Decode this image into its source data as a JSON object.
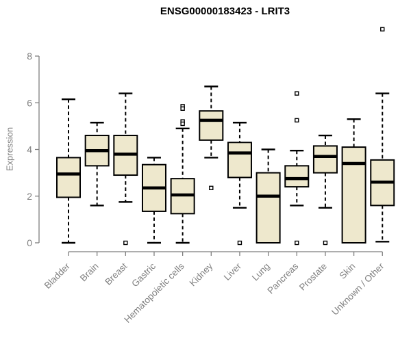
{
  "title": "ENSG00000183423 - LRIT3",
  "colors": {
    "box_fill": "#EEE8CD",
    "box_border": "#000000",
    "median": "#000000",
    "whisker": "#000000",
    "outlier_border": "#000000",
    "outlier_fill": "#ffffff",
    "axis": "#7E7E7E",
    "tick_label": "#808080",
    "title": "#000000"
  },
  "chart_data": {
    "type": "boxplot",
    "title": "ENSG00000183423 - LRIT3",
    "xlabel": "",
    "ylabel": "Expression",
    "ylim": [
      0,
      8
    ],
    "yticks": [
      0,
      2,
      4,
      6,
      8
    ],
    "grid": false,
    "legend": false,
    "categories": [
      "Bladder",
      "Brain",
      "Breast",
      "Gastric",
      "Hematopoietic cells",
      "Kidney",
      "Liver",
      "Lung",
      "Pancreas",
      "Prostate",
      "Skin",
      "Unknown / Other"
    ],
    "boxes": [
      {
        "category": "Bladder",
        "whisker_low": 0,
        "q1": 1.95,
        "median": 2.95,
        "q3": 3.65,
        "whisker_high": 6.15,
        "outliers": []
      },
      {
        "category": "Brain",
        "whisker_low": 1.6,
        "q1": 3.3,
        "median": 3.95,
        "q3": 4.6,
        "whisker_high": 5.15,
        "outliers": []
      },
      {
        "category": "Breast",
        "whisker_low": 1.75,
        "q1": 2.9,
        "median": 3.8,
        "q3": 4.6,
        "whisker_high": 6.4,
        "outliers": [
          0
        ]
      },
      {
        "category": "Gastric",
        "whisker_low": 0,
        "q1": 1.35,
        "median": 2.35,
        "q3": 3.35,
        "whisker_high": 3.65,
        "outliers": []
      },
      {
        "category": "Hematopoietic cells",
        "whisker_low": 0,
        "q1": 1.25,
        "median": 2.05,
        "q3": 2.75,
        "whisker_high": 4.9,
        "outliers": [
          5.85,
          5.75,
          5.2,
          5.1
        ]
      },
      {
        "category": "Kidney",
        "whisker_low": 3.65,
        "q1": 4.4,
        "median": 5.25,
        "q3": 5.65,
        "whisker_high": 6.7,
        "outliers": [
          2.35
        ]
      },
      {
        "category": "Liver",
        "whisker_low": 1.5,
        "q1": 2.8,
        "median": 3.85,
        "q3": 4.3,
        "whisker_high": 5.15,
        "outliers": [
          0
        ]
      },
      {
        "category": "Lung",
        "whisker_low": 0,
        "q1": 0,
        "median": 2.0,
        "q3": 3.0,
        "whisker_high": 4.0,
        "outliers": []
      },
      {
        "category": "Pancreas",
        "whisker_low": 1.6,
        "q1": 2.4,
        "median": 2.75,
        "q3": 3.3,
        "whisker_high": 3.95,
        "outliers": [
          6.4,
          5.25,
          0
        ]
      },
      {
        "category": "Prostate",
        "whisker_low": 1.5,
        "q1": 3.0,
        "median": 3.7,
        "q3": 4.15,
        "whisker_high": 4.6,
        "outliers": [
          0
        ]
      },
      {
        "category": "Skin",
        "whisker_low": 0,
        "q1": 0,
        "median": 3.4,
        "q3": 4.1,
        "whisker_high": 5.3,
        "outliers": []
      },
      {
        "category": "Unknown / Other",
        "whisker_low": 0.05,
        "q1": 1.6,
        "median": 2.6,
        "q3": 3.55,
        "whisker_high": 6.4,
        "outliers": [
          9.15
        ]
      }
    ]
  }
}
